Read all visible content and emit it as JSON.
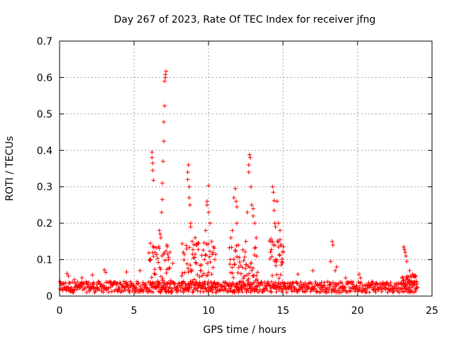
{
  "chart_data": {
    "type": "scatter",
    "title": "Day 267 of 2023, Rate Of TEC Index for receiver jfng",
    "xlabel": "GPS time / hours",
    "ylabel": "ROTI / TECUs",
    "xlim": [
      0,
      25
    ],
    "ylim": [
      0,
      0.7
    ],
    "xticks": [
      0,
      5,
      10,
      15,
      20,
      25
    ],
    "yticks": [
      0,
      0.1,
      0.2,
      0.3,
      0.4,
      0.5,
      0.6,
      0.7
    ],
    "xtick_labels": [
      "0",
      "5",
      "10",
      "15",
      "20",
      "25"
    ],
    "ytick_labels": [
      "0",
      "0.1",
      "0.2",
      "0.3",
      "0.4",
      "0.5",
      "0.6",
      "0.7"
    ],
    "grid": true,
    "marker": "plus",
    "color": "#ff0000",
    "baseline_band": [
      0.01,
      0.04
    ],
    "points": [
      [
        0.5,
        0.062
      ],
      [
        0.6,
        0.055
      ],
      [
        1.0,
        0.045
      ],
      [
        1.5,
        0.05
      ],
      [
        2.2,
        0.058
      ],
      [
        3.0,
        0.072
      ],
      [
        3.1,
        0.065
      ],
      [
        4.5,
        0.066
      ],
      [
        5.4,
        0.07
      ],
      [
        6.1,
        0.145
      ],
      [
        6.2,
        0.395
      ],
      [
        6.2,
        0.38
      ],
      [
        6.25,
        0.365
      ],
      [
        6.25,
        0.345
      ],
      [
        6.3,
        0.318
      ],
      [
        6.4,
        0.12
      ],
      [
        6.7,
        0.18
      ],
      [
        6.75,
        0.17
      ],
      [
        6.8,
        0.16
      ],
      [
        6.85,
        0.23
      ],
      [
        6.9,
        0.265
      ],
      [
        6.9,
        0.31
      ],
      [
        6.95,
        0.37
      ],
      [
        7.0,
        0.425
      ],
      [
        7.0,
        0.478
      ],
      [
        7.05,
        0.522
      ],
      [
        7.05,
        0.59
      ],
      [
        7.1,
        0.6
      ],
      [
        7.1,
        0.608
      ],
      [
        7.15,
        0.617
      ],
      [
        7.2,
        0.14
      ],
      [
        7.3,
        0.1
      ],
      [
        7.6,
        0.09
      ],
      [
        8.3,
        0.12
      ],
      [
        8.6,
        0.32
      ],
      [
        8.6,
        0.34
      ],
      [
        8.65,
        0.36
      ],
      [
        8.7,
        0.3
      ],
      [
        8.7,
        0.27
      ],
      [
        8.75,
        0.25
      ],
      [
        8.8,
        0.2
      ],
      [
        8.8,
        0.19
      ],
      [
        8.9,
        0.15
      ],
      [
        9.1,
        0.16
      ],
      [
        9.2,
        0.14
      ],
      [
        9.8,
        0.18
      ],
      [
        9.9,
        0.26
      ],
      [
        9.9,
        0.25
      ],
      [
        10.0,
        0.303
      ],
      [
        10.0,
        0.23
      ],
      [
        10.1,
        0.2
      ],
      [
        10.2,
        0.15
      ],
      [
        10.3,
        0.12
      ],
      [
        11.5,
        0.16
      ],
      [
        11.6,
        0.18
      ],
      [
        11.7,
        0.27
      ],
      [
        11.8,
        0.295
      ],
      [
        11.85,
        0.26
      ],
      [
        11.9,
        0.245
      ],
      [
        11.9,
        0.2
      ],
      [
        12.0,
        0.14
      ],
      [
        12.5,
        0.15
      ],
      [
        12.6,
        0.23
      ],
      [
        12.7,
        0.36
      ],
      [
        12.7,
        0.34
      ],
      [
        12.75,
        0.388
      ],
      [
        12.8,
        0.38
      ],
      [
        12.85,
        0.3
      ],
      [
        12.9,
        0.25
      ],
      [
        13.0,
        0.24
      ],
      [
        13.0,
        0.22
      ],
      [
        13.1,
        0.2
      ],
      [
        13.2,
        0.16
      ],
      [
        14.2,
        0.15
      ],
      [
        14.3,
        0.3
      ],
      [
        14.35,
        0.285
      ],
      [
        14.4,
        0.262
      ],
      [
        14.4,
        0.235
      ],
      [
        14.45,
        0.2
      ],
      [
        14.5,
        0.19
      ],
      [
        14.6,
        0.26
      ],
      [
        14.7,
        0.2
      ],
      [
        14.8,
        0.18
      ],
      [
        14.8,
        0.155
      ],
      [
        14.9,
        0.14
      ],
      [
        15.0,
        0.12
      ],
      [
        16.0,
        0.06
      ],
      [
        17.0,
        0.07
      ],
      [
        18.2,
        0.095
      ],
      [
        18.3,
        0.15
      ],
      [
        18.35,
        0.14
      ],
      [
        18.5,
        0.07
      ],
      [
        18.6,
        0.08
      ],
      [
        19.2,
        0.05
      ],
      [
        20.1,
        0.06
      ],
      [
        20.2,
        0.05
      ],
      [
        21.0,
        0.04
      ],
      [
        23.1,
        0.135
      ],
      [
        23.15,
        0.128
      ],
      [
        23.2,
        0.12
      ],
      [
        23.25,
        0.11
      ],
      [
        23.3,
        0.095
      ],
      [
        23.5,
        0.07
      ],
      [
        23.7,
        0.06
      ],
      [
        23.8,
        0.055
      ]
    ]
  }
}
